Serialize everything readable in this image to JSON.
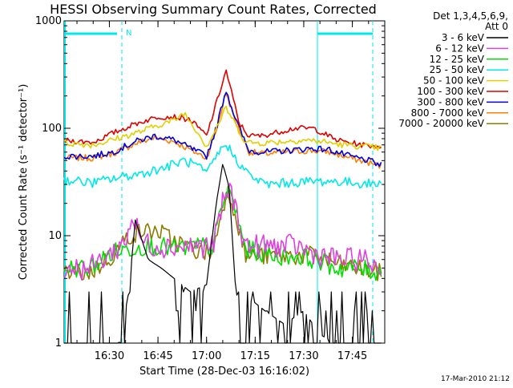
{
  "chart_data": {
    "type": "line",
    "title": "HESSI Observing Summary Count Rates, Corrected",
    "xlabel": "Start Time (28-Dec-03 16:16:02)",
    "ylabel": "Corrected Count Rate (s⁻¹ detector⁻¹)",
    "y_scale": "log",
    "ylim": [
      1,
      1000
    ],
    "xlim": [
      "16:16:02",
      "17:55:00"
    ],
    "x_ticks": [
      "16:30",
      "16:45",
      "17:00",
      "17:15",
      "17:30",
      "17:45"
    ],
    "y_ticks": [
      "1",
      "10",
      "100",
      "1000"
    ],
    "legend_header": [
      "Det 1,3,4,5,6,9,",
      "Att 0"
    ],
    "footer_timestamp": "17-Mar-2010 21:12",
    "night_marker_label": "N",
    "series": [
      {
        "name": "3 - 6 keV",
        "color": "#000000",
        "x": [
          "16:16",
          "16:31",
          "16:33",
          "16:36",
          "16:38",
          "16:42",
          "16:46",
          "16:50",
          "16:55",
          "17:00",
          "17:03",
          "17:05",
          "17:07",
          "17:09",
          "17:11",
          "17:14",
          "17:18",
          "17:24",
          "17:30",
          "17:35",
          "17:40",
          "17:45",
          "17:54"
        ],
        "values": [
          1,
          1,
          1,
          3,
          14,
          6,
          5,
          4,
          3,
          3.5,
          20,
          47,
          28,
          3,
          2,
          2.5,
          2,
          1.5,
          2,
          1.2,
          1,
          1,
          1
        ]
      },
      {
        "name": "6 - 12 keV",
        "color": "#e040e0",
        "x": [
          "16:16",
          "16:24",
          "16:31",
          "16:35",
          "16:37",
          "16:40",
          "16:44",
          "16:50",
          "16:58",
          "17:02",
          "17:05",
          "17:07",
          "17:09",
          "17:12",
          "17:16",
          "17:22",
          "17:28",
          "17:32",
          "17:40",
          "17:48",
          "17:54"
        ],
        "values": [
          5,
          5,
          7,
          9,
          15,
          9,
          8,
          8,
          8,
          8,
          20,
          28,
          18,
          8,
          8,
          8,
          8,
          7,
          6,
          6,
          5
        ]
      },
      {
        "name": "12 - 25 keV",
        "color": "#00e000",
        "x": [
          "16:16",
          "16:24",
          "16:31",
          "16:36",
          "16:40",
          "16:45",
          "16:50",
          "16:58",
          "17:02",
          "17:05",
          "17:07",
          "17:09",
          "17:12",
          "17:16",
          "17:22",
          "17:28",
          "17:34",
          "17:40",
          "17:46",
          "17:54"
        ],
        "values": [
          5,
          5,
          7,
          7.5,
          8,
          8,
          7.5,
          8,
          8,
          20,
          27,
          17,
          7.5,
          7,
          6.5,
          6.5,
          6,
          5,
          5,
          4.5
        ]
      },
      {
        "name": "25 - 50 keV",
        "color": "#00e8e8",
        "x": [
          "16:16",
          "16:25",
          "16:31",
          "16:40",
          "16:48",
          "16:53",
          "16:57",
          "17:00",
          "17:03",
          "17:06",
          "17:09",
          "17:13",
          "17:18",
          "17:25",
          "17:32",
          "17:40",
          "17:46",
          "17:54"
        ],
        "values": [
          33,
          31,
          34,
          38,
          44,
          50,
          45,
          37,
          55,
          72,
          52,
          37,
          30,
          31,
          32,
          32,
          31,
          30
        ]
      },
      {
        "name": "50 - 100 keV",
        "color": "#e0d000",
        "x": [
          "16:16",
          "16:25",
          "16:31",
          "16:40",
          "16:46",
          "16:50",
          "16:53",
          "16:57",
          "17:00",
          "17:03",
          "17:06",
          "17:09",
          "17:12",
          "17:17",
          "17:23",
          "17:30",
          "17:36",
          "17:42",
          "17:48",
          "17:54"
        ],
        "values": [
          73,
          70,
          78,
          94,
          110,
          118,
          140,
          95,
          68,
          100,
          155,
          108,
          74,
          73,
          75,
          78,
          75,
          70,
          68,
          65
        ]
      },
      {
        "name": "100 - 300 keV",
        "color": "#e00000",
        "x": [
          "16:16",
          "16:25",
          "16:31",
          "16:38",
          "16:45",
          "16:50",
          "16:55",
          "17:00",
          "17:03",
          "17:06",
          "17:08",
          "17:10",
          "17:13",
          "17:17",
          "17:22",
          "17:27",
          "17:33",
          "17:40",
          "17:48",
          "17:54"
        ],
        "values": [
          77,
          74,
          90,
          110,
          128,
          128,
          120,
          85,
          170,
          345,
          200,
          112,
          85,
          85,
          92,
          100,
          100,
          78,
          70,
          68
        ]
      },
      {
        "name": "300 - 800 keV",
        "color": "#0000e0",
        "x": [
          "16:16",
          "16:25",
          "16:31",
          "16:38",
          "16:44",
          "16:50",
          "16:55",
          "17:00",
          "17:03",
          "17:06",
          "17:09",
          "17:13",
          "17:18",
          "17:25",
          "17:32",
          "17:38",
          "17:44",
          "17:50",
          "17:54"
        ],
        "values": [
          55,
          55,
          60,
          75,
          85,
          78,
          65,
          55,
          100,
          230,
          120,
          62,
          60,
          62,
          65,
          63,
          55,
          50,
          45
        ]
      },
      {
        "name": "800 - 7000 keV",
        "color": "#ff7f00",
        "x": [
          "16:16",
          "16:25",
          "16:31",
          "16:38",
          "16:44",
          "16:50",
          "16:55",
          "17:00",
          "17:03",
          "17:06",
          "17:09",
          "17:13",
          "17:18",
          "17:25",
          "17:32",
          "17:38",
          "17:44",
          "17:50",
          "17:54"
        ],
        "values": [
          53,
          53,
          58,
          72,
          82,
          75,
          63,
          53,
          95,
          215,
          115,
          60,
          58,
          60,
          62,
          60,
          53,
          48,
          44
        ]
      },
      {
        "name": "7000 - 20000 keV",
        "color": "#8b7b00",
        "x": [
          "16:16",
          "16:24",
          "16:31",
          "16:36",
          "16:40",
          "16:45",
          "16:50",
          "16:58",
          "17:02",
          "17:05",
          "17:07",
          "17:09",
          "17:12",
          "17:16",
          "17:22",
          "17:28",
          "17:34",
          "17:40",
          "17:46",
          "17:54"
        ],
        "values": [
          4.5,
          4.5,
          6.5,
          10,
          11,
          11,
          9,
          7,
          7,
          20,
          25,
          16,
          6.5,
          6.5,
          6.5,
          6.5,
          6.5,
          5.5,
          5,
          4.5
        ]
      }
    ]
  }
}
